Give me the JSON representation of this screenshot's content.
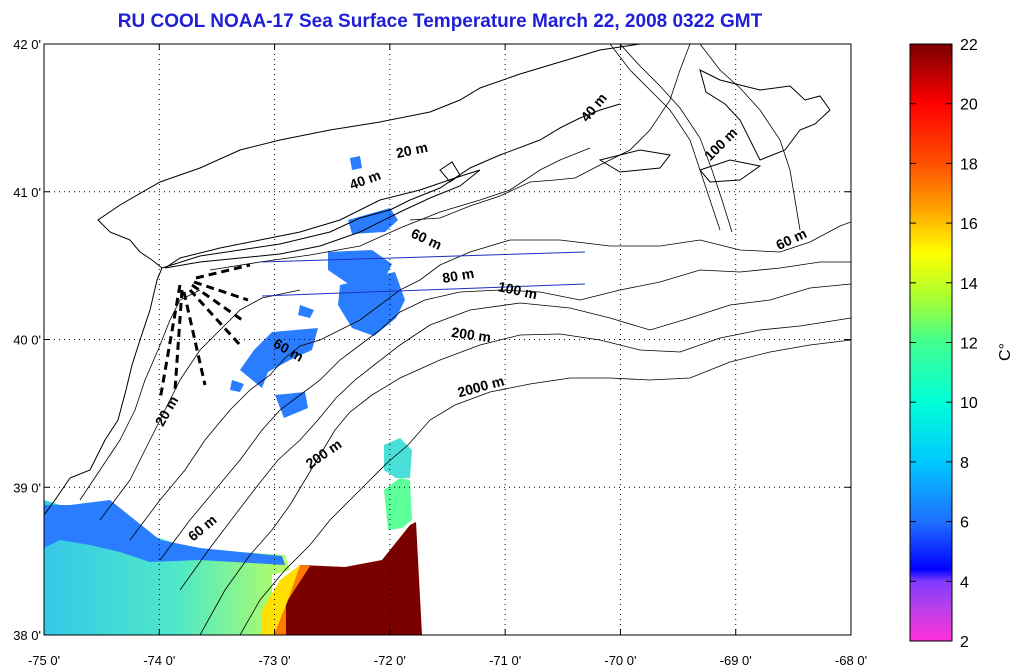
{
  "title": "RU COOL  NOAA-17 Sea Surface Temperature March 22, 2008 0322 GMT",
  "map": {
    "lon_range": [
      -75,
      -68
    ],
    "lat_range": [
      38,
      42
    ],
    "lon_ticks": [
      {
        "value": -75,
        "label": "-75 0'"
      },
      {
        "value": -74,
        "label": "-74 0'"
      },
      {
        "value": -73,
        "label": "-73 0'"
      },
      {
        "value": -72,
        "label": "-72 0'"
      },
      {
        "value": -71,
        "label": "-71 0'"
      },
      {
        "value": -70,
        "label": "-70 0'"
      },
      {
        "value": -69,
        "label": "-69 0'"
      },
      {
        "value": -68,
        "label": "-68 0'"
      }
    ],
    "lat_ticks": [
      {
        "value": 38,
        "label": "38 0'"
      },
      {
        "value": 39,
        "label": "39 0'"
      },
      {
        "value": 40,
        "label": "40 0'"
      },
      {
        "value": 41,
        "label": "41 0'"
      },
      {
        "value": 42,
        "label": "42 0'"
      }
    ],
    "grid": true,
    "isobath_labels": [
      {
        "text": "20 m",
        "lon": -71.8,
        "lat": 41.25,
        "rot": -12
      },
      {
        "text": "40 m",
        "lon": -72.2,
        "lat": 41.05,
        "rot": -20
      },
      {
        "text": "40 m",
        "lon": -70.2,
        "lat": 41.55,
        "rot": -50
      },
      {
        "text": "100 m",
        "lon": -69.1,
        "lat": 41.3,
        "rot": -45
      },
      {
        "text": "60 m",
        "lon": -68.5,
        "lat": 40.65,
        "rot": -25
      },
      {
        "text": "60 m",
        "lon": -71.7,
        "lat": 40.65,
        "rot": 25
      },
      {
        "text": "80 m",
        "lon": -71.4,
        "lat": 40.4,
        "rot": -10
      },
      {
        "text": "100 m",
        "lon": -70.9,
        "lat": 40.3,
        "rot": 12
      },
      {
        "text": "200 m",
        "lon": -71.3,
        "lat": 40.0,
        "rot": 8
      },
      {
        "text": "2000 m",
        "lon": -71.2,
        "lat": 39.65,
        "rot": -15
      },
      {
        "text": "60 m",
        "lon": -72.9,
        "lat": 39.9,
        "rot": 30
      },
      {
        "text": "20 m",
        "lon": -73.9,
        "lat": 39.5,
        "rot": -60
      },
      {
        "text": "200 m",
        "lon": -72.55,
        "lat": 39.2,
        "rot": -35
      },
      {
        "text": "60 m",
        "lon": -73.6,
        "lat": 38.7,
        "rot": -40
      }
    ]
  },
  "colorbar": {
    "min": 2,
    "max": 22,
    "unit": "C°",
    "ticks": [
      "2",
      "4",
      "6",
      "8",
      "10",
      "12",
      "14",
      "16",
      "18",
      "20",
      "22"
    ],
    "stops": [
      {
        "v": 2,
        "c": "#ff30d8"
      },
      {
        "v": 3,
        "c": "#c040e8"
      },
      {
        "v": 4,
        "c": "#7f3cff"
      },
      {
        "v": 4.4,
        "c": "#0000ff"
      },
      {
        "v": 6,
        "c": "#1f6fff"
      },
      {
        "v": 8,
        "c": "#00c8ff"
      },
      {
        "v": 10,
        "c": "#00ffd8"
      },
      {
        "v": 12,
        "c": "#40ff90"
      },
      {
        "v": 13.5,
        "c": "#a8ff30"
      },
      {
        "v": 15,
        "c": "#ffff00"
      },
      {
        "v": 16.5,
        "c": "#ffa000"
      },
      {
        "v": 18,
        "c": "#ff5000"
      },
      {
        "v": 20,
        "c": "#ff0000"
      },
      {
        "v": 22,
        "c": "#7a0000"
      }
    ]
  }
}
